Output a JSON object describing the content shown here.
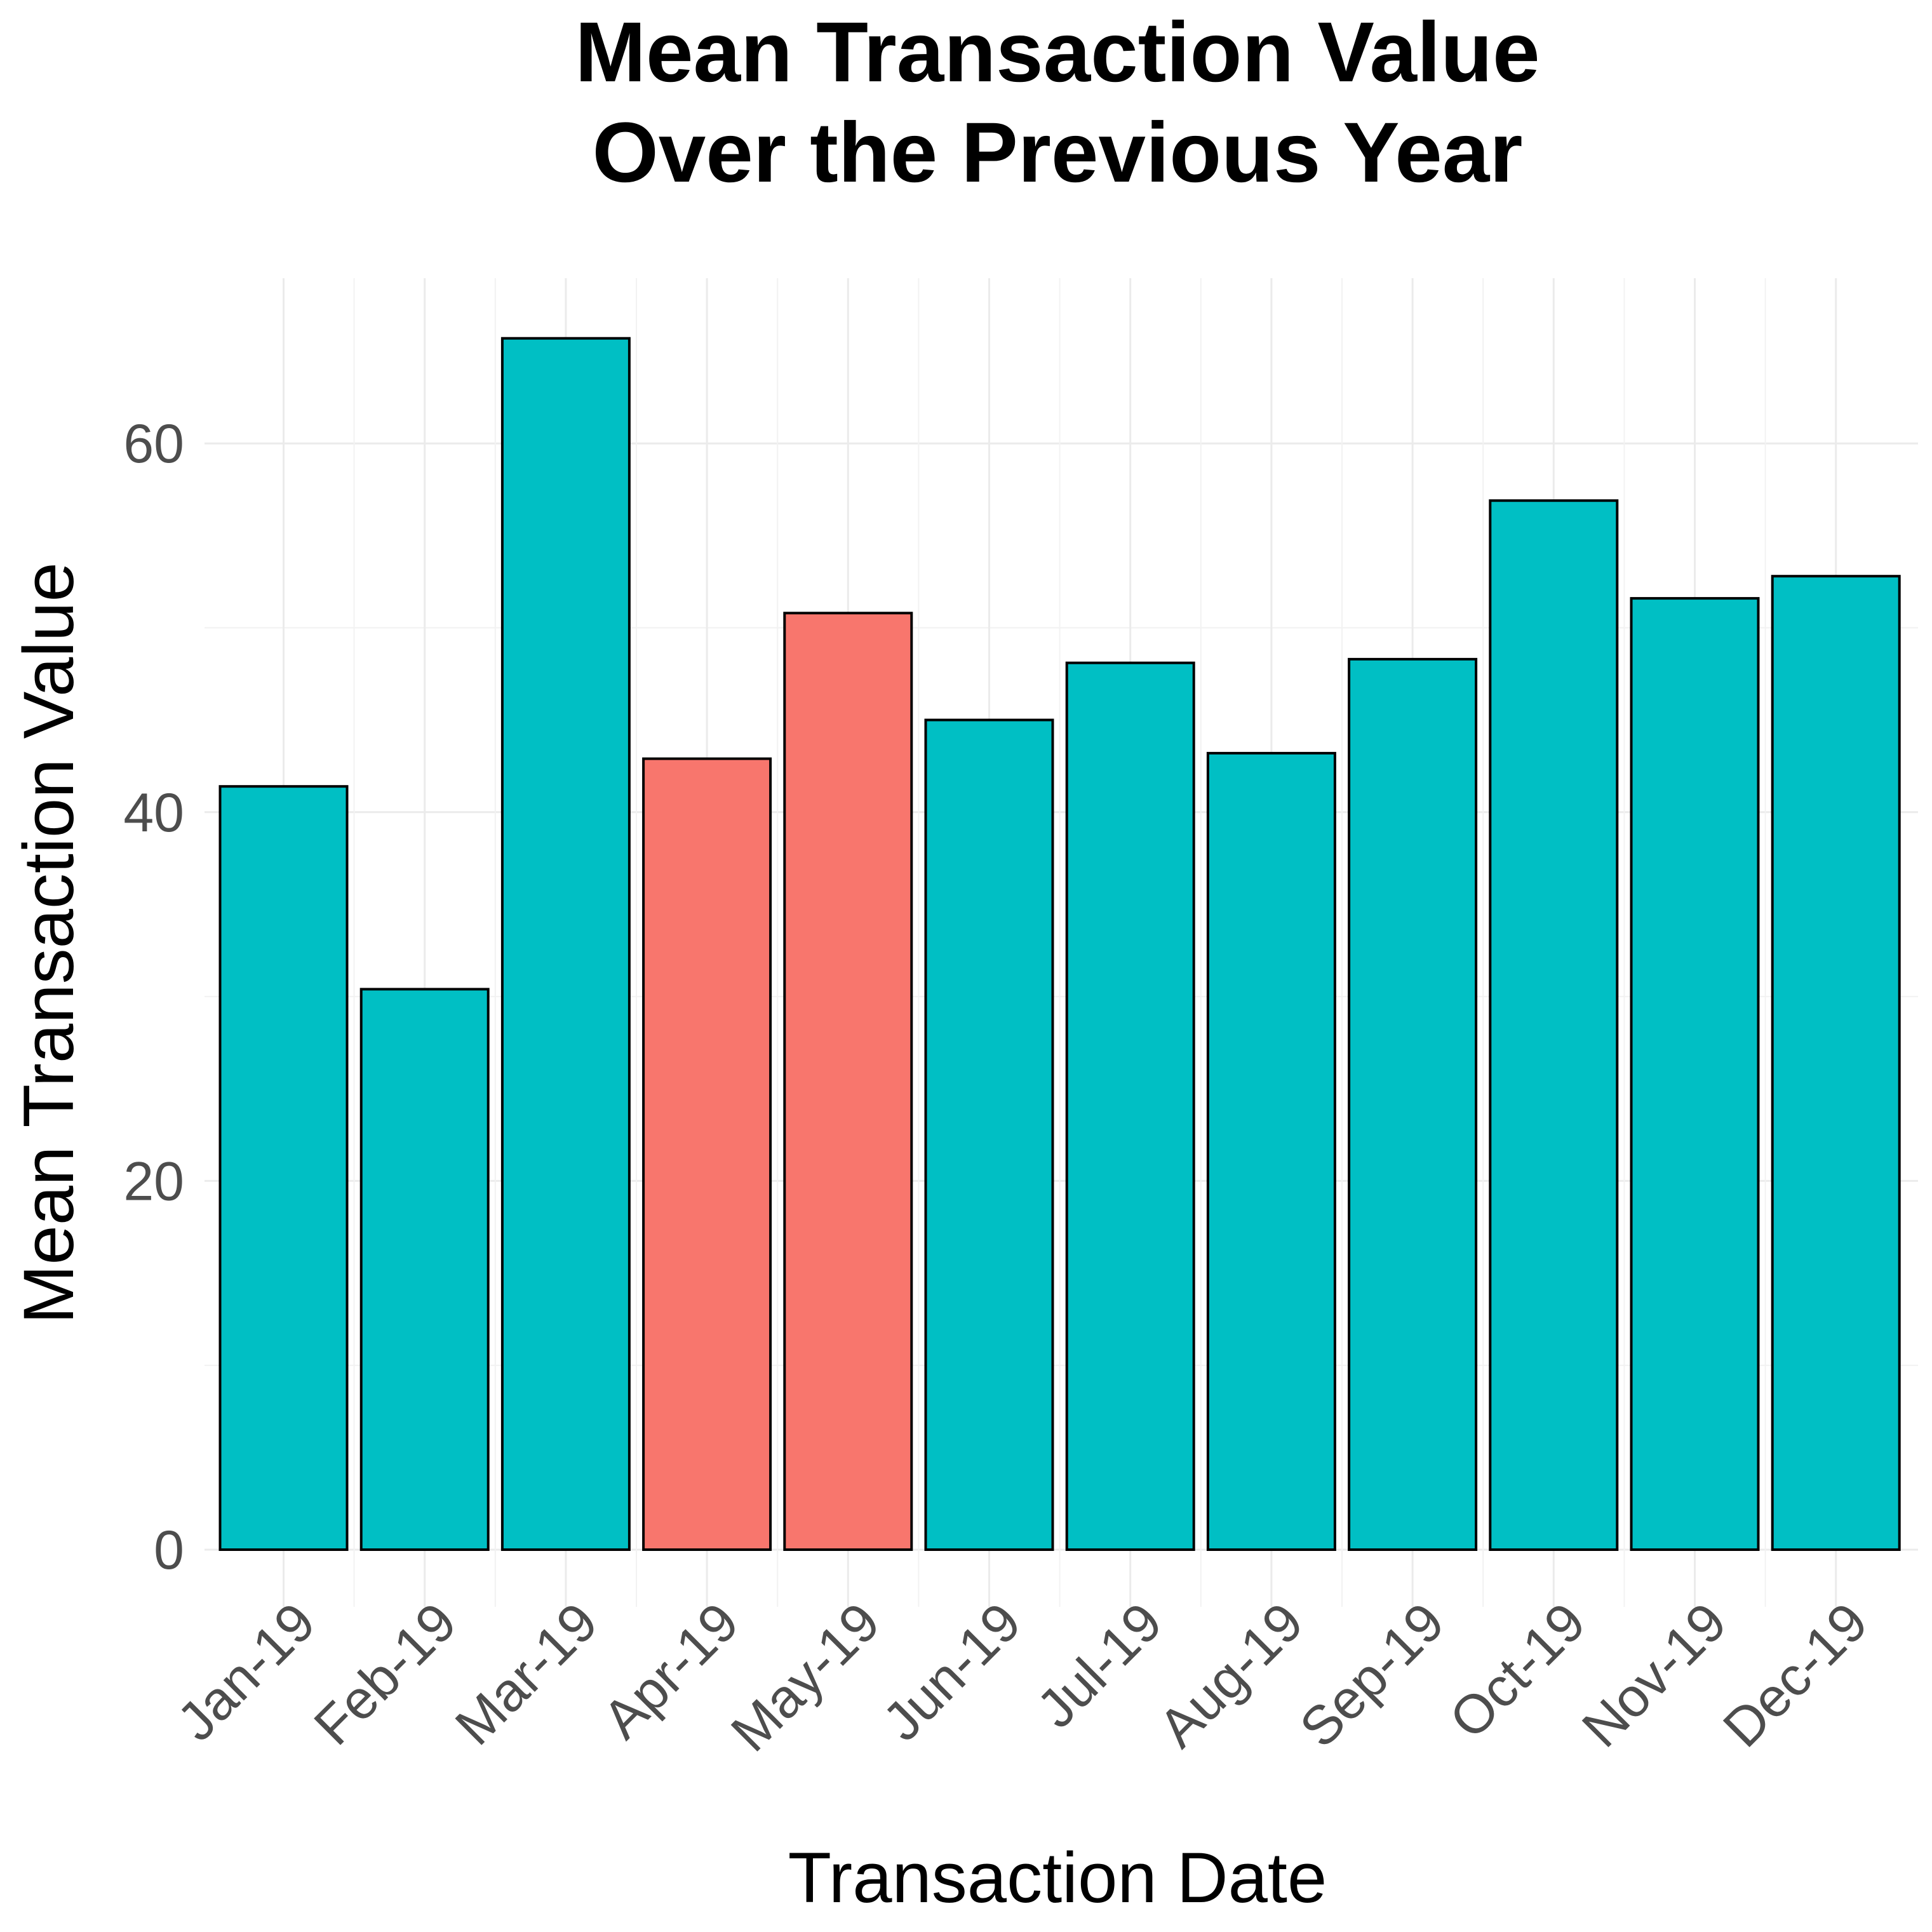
{
  "colors": {
    "background": "#ffffff",
    "highlight": "#F8766D",
    "default": "#00BFC4",
    "bar_outline": "#000000",
    "grid": "#ebebeb",
    "tick_text": "#4d4d4d"
  },
  "chart_data": {
    "type": "bar",
    "title": [
      "Mean Transaction Value",
      "Over the Previous Year"
    ],
    "xlabel": "Transaction Date",
    "ylabel": "Mean Transaction Value",
    "categories": [
      "Jan-19",
      "Feb-19",
      "Mar-19",
      "Apr-19",
      "May-19",
      "Jun-19",
      "Jul-19",
      "Aug-19",
      "Sep-19",
      "Oct-19",
      "Nov-19",
      "Dec-19"
    ],
    "values": [
      41.4,
      30.4,
      65.7,
      42.9,
      50.8,
      45.0,
      48.1,
      43.2,
      48.3,
      56.9,
      51.6,
      52.8
    ],
    "highlighted": [
      false,
      false,
      false,
      true,
      true,
      false,
      false,
      false,
      false,
      false,
      false,
      false
    ],
    "yticks": [
      0,
      20,
      40,
      60
    ],
    "ylim": [
      0,
      69
    ],
    "grid": true,
    "legend": "none"
  }
}
